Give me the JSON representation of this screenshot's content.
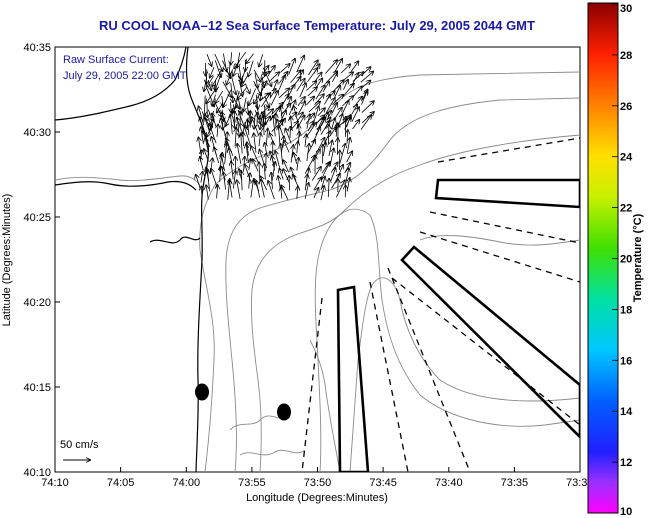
{
  "title": "RU COOL  NOAA–12  Sea Surface Temperature:  July 29, 2005 2044 GMT",
  "legend": {
    "line1": "Raw Surface Current:",
    "line2": "July 29, 2005 22:00 GMT"
  },
  "scale_label": "50 cm/s",
  "x_axis": {
    "label": "Longitude (Degrees:Minutes)",
    "ticks": [
      "74:10",
      "74:05",
      "74:00",
      "73:55",
      "73:50",
      "73:45",
      "73:40",
      "73:35",
      "73:3"
    ]
  },
  "y_axis": {
    "label": "Latitude (Degrees:Minutes)",
    "ticks": [
      "40:35",
      "40:30",
      "40:25",
      "40:20",
      "40:15",
      "40:10"
    ]
  },
  "colorbar": {
    "label": "Temperature (°C)",
    "ticks": [
      "30",
      "28",
      "26",
      "24",
      "22",
      "20",
      "18",
      "16",
      "14",
      "12",
      "10"
    ],
    "min": 10,
    "max": 30
  },
  "colors": {
    "title": "#1a1aa6",
    "contour": "#888888",
    "coast": "#000000"
  }
}
